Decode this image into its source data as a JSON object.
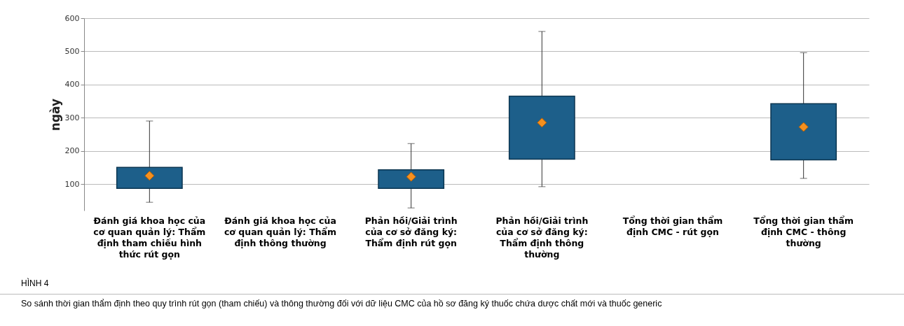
{
  "chart_data": {
    "type": "box",
    "ylabel": "ngày",
    "categories": [
      "Đánh giá khoa học của cơ quan quản lý: Thẩm định tham chiếu hình thức rút gọn",
      "Đánh giá khoa học của cơ quan quản lý: Thẩm định thông thường",
      "Phản hồi/Giải trình của cơ sở đăng ký: Thẩm định rút gọn",
      "Phản hồi/Giải trình của cơ sở đăng ký: Thẩm định thông thường",
      "Tổng thời gian thẩm định CMC - rút gọn",
      "Tổng thời gian thẩm định CMC - thông thường"
    ],
    "series": [
      {
        "color": "#1d5f8a",
        "boxes": [
          {
            "low": 45,
            "q1": 87,
            "median": 125,
            "q3": 150,
            "high": 290
          },
          null,
          {
            "low": 28,
            "q1": 87,
            "median": 122,
            "q3": 143,
            "high": 222
          },
          {
            "low": 92,
            "q1": 175,
            "median": 285,
            "q3": 365,
            "high": 560
          },
          null,
          {
            "low": 117,
            "q1": 173,
            "median": 272,
            "q3": 342,
            "high": 496
          }
        ]
      }
    ],
    "ylim": [
      20,
      600
    ],
    "yticks": [
      100,
      200,
      300,
      400,
      500,
      600
    ],
    "grid": "y",
    "marker": "diamond",
    "annotations": [
      "HÌNH 4",
      "So sánh thời gian thẩm định theo quy trình rút gọn (tham chiếu) và thông thường đối với dữ liệu CMC của hồ sơ đăng ký thuốc chứa dược chất mới và thuốc generic"
    ]
  }
}
